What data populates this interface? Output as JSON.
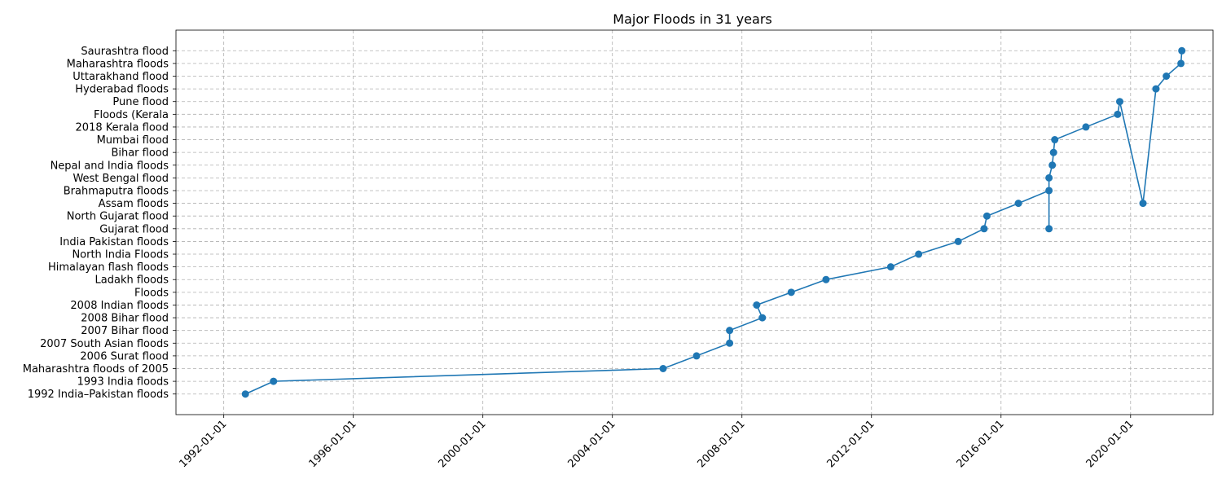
{
  "chart_data": {
    "type": "line",
    "title": "Major Floods in 31 years",
    "xlabel": "",
    "ylabel": "",
    "grid": true,
    "x_ticks": [
      "1992-01-01",
      "1996-01-01",
      "2000-01-01",
      "2004-01-01",
      "2008-01-01",
      "2012-01-01",
      "2016-01-01",
      "2020-01-01"
    ],
    "xlim": [
      "1990-07-11",
      "2022-07-19"
    ],
    "categories": [
      "1992 India–Pakistan floods",
      "1993 India floods",
      "Maharashtra floods of 2005",
      "2006 Surat flood",
      "2007 South Asian floods",
      "2007 Bihar flood",
      "2008 Bihar flood",
      "2008 Indian floods",
      "Floods",
      "Ladakh floods",
      "Himalayan flash floods",
      "North India Floods",
      "India Pakistan floods",
      "Gujarat flood",
      "North Gujarat flood",
      "Assam floods",
      "Brahmaputra floods",
      "West Bengal flood",
      "Nepal and India floods",
      "Bihar flood",
      "Mumbai flood",
      "2018 Kerala flood",
      "Floods (Kerala",
      "Pune flood",
      "Hyderabad floods",
      "Uttarakhand flood",
      "Maharashtra floods",
      "Saurashtra flood"
    ],
    "points": [
      {
        "x": "1992-09-01",
        "y": "1992 India–Pakistan floods"
      },
      {
        "x": "1993-07-15",
        "y": "1993 India floods"
      },
      {
        "x": "2005-07-26",
        "y": "Maharashtra floods of 2005"
      },
      {
        "x": "2006-08-07",
        "y": "2006 Surat flood"
      },
      {
        "x": "2007-08-15",
        "y": "2007 South Asian floods"
      },
      {
        "x": "2007-08-15",
        "y": "2007 Bihar flood"
      },
      {
        "x": "2008-08-18",
        "y": "2008 Bihar flood"
      },
      {
        "x": "2008-06-15",
        "y": "2008 Indian floods"
      },
      {
        "x": "2009-07-10",
        "y": "Floods"
      },
      {
        "x": "2010-08-06",
        "y": "Ladakh floods"
      },
      {
        "x": "2012-08-05",
        "y": "Himalayan flash floods"
      },
      {
        "x": "2013-06-16",
        "y": "North India Floods"
      },
      {
        "x": "2014-09-05",
        "y": "India Pakistan floods"
      },
      {
        "x": "2015-06-24",
        "y": "Gujarat flood"
      },
      {
        "x": "2015-07-26",
        "y": "North Gujarat flood"
      },
      {
        "x": "2016-07-15",
        "y": "Assam floods"
      },
      {
        "x": "2017-06-25",
        "y": "Brahmaputra floods"
      },
      {
        "x": "2017-06-25",
        "y": "Gujarat flood"
      },
      {
        "x": "2017-06-25",
        "y": "West Bengal flood"
      },
      {
        "x": "2017-08-01",
        "y": "Nepal and India floods"
      },
      {
        "x": "2017-08-15",
        "y": "Bihar flood"
      },
      {
        "x": "2017-08-29",
        "y": "Mumbai flood"
      },
      {
        "x": "2018-08-15",
        "y": "2018 Kerala flood"
      },
      {
        "x": "2019-08-08",
        "y": "Floods (Kerala"
      },
      {
        "x": "2019-09-01",
        "y": "Pune flood"
      },
      {
        "x": "2020-05-20",
        "y": "Assam floods"
      },
      {
        "x": "2020-10-13",
        "y": "Hyderabad floods"
      },
      {
        "x": "2021-02-07",
        "y": "Uttarakhand flood"
      },
      {
        "x": "2021-07-22",
        "y": "Maharashtra floods"
      },
      {
        "x": "2021-08-01",
        "y": "Saurashtra flood"
      }
    ],
    "color": "#1f77b4"
  }
}
